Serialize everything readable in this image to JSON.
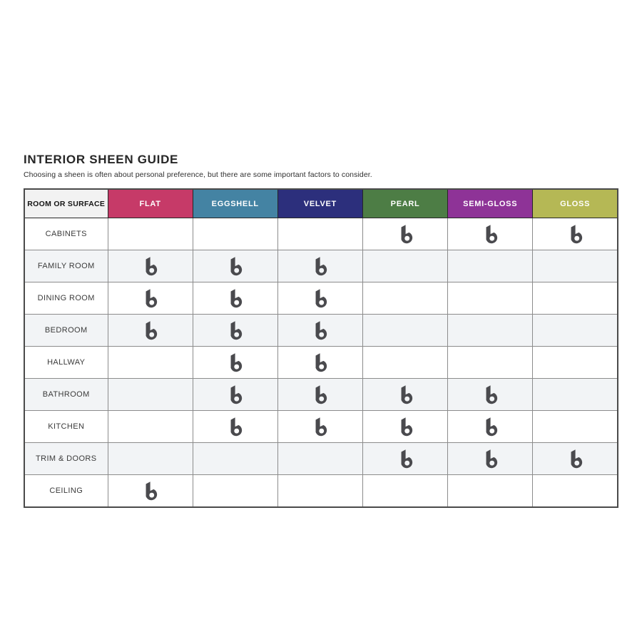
{
  "page": {
    "title": "INTERIOR SHEEN GUIDE",
    "subtitle": "Choosing a sheen is often about personal preference, but there are some important factors to consider."
  },
  "icon": {
    "name": "brand-b-logo-icon",
    "meaning": "recommended sheen mark",
    "color": "#4a4a4e"
  },
  "chart_data": {
    "type": "table",
    "title": "INTERIOR SHEEN GUIDE",
    "subtitle": "Choosing a sheen is often about personal preference, but there are some important factors to consider.",
    "corner_header": "ROOM OR SURFACE",
    "columns": [
      {
        "label": "FLAT",
        "header_color": "#c63a68"
      },
      {
        "label": "EGGSHELL",
        "header_color": "#4483a3"
      },
      {
        "label": "VELVET",
        "header_color": "#2c2f7c"
      },
      {
        "label": "PEARL",
        "header_color": "#4d7d45"
      },
      {
        "label": "SEMI-GLOSS",
        "header_color": "#8e3397"
      },
      {
        "label": "GLOSS",
        "header_color": "#b5b855"
      }
    ],
    "rows": [
      {
        "label": "CABINETS",
        "marks": [
          0,
          0,
          0,
          1,
          1,
          1
        ]
      },
      {
        "label": "FAMILY ROOM",
        "marks": [
          1,
          1,
          1,
          0,
          0,
          0
        ]
      },
      {
        "label": "DINING ROOM",
        "marks": [
          1,
          1,
          1,
          0,
          0,
          0
        ]
      },
      {
        "label": "BEDROOM",
        "marks": [
          1,
          1,
          1,
          0,
          0,
          0
        ]
      },
      {
        "label": "HALLWAY",
        "marks": [
          0,
          1,
          1,
          0,
          0,
          0
        ]
      },
      {
        "label": "BATHROOM",
        "marks": [
          0,
          1,
          1,
          1,
          1,
          0
        ]
      },
      {
        "label": "KITCHEN",
        "marks": [
          0,
          1,
          1,
          1,
          1,
          0
        ]
      },
      {
        "label": "TRIM & DOORS",
        "marks": [
          0,
          0,
          0,
          1,
          1,
          1
        ]
      },
      {
        "label": "CEILING",
        "marks": [
          1,
          0,
          0,
          0,
          0,
          0
        ]
      }
    ],
    "stripe_colors": {
      "odd_row": "#ffffff",
      "even_row": "#f2f4f6"
    }
  }
}
